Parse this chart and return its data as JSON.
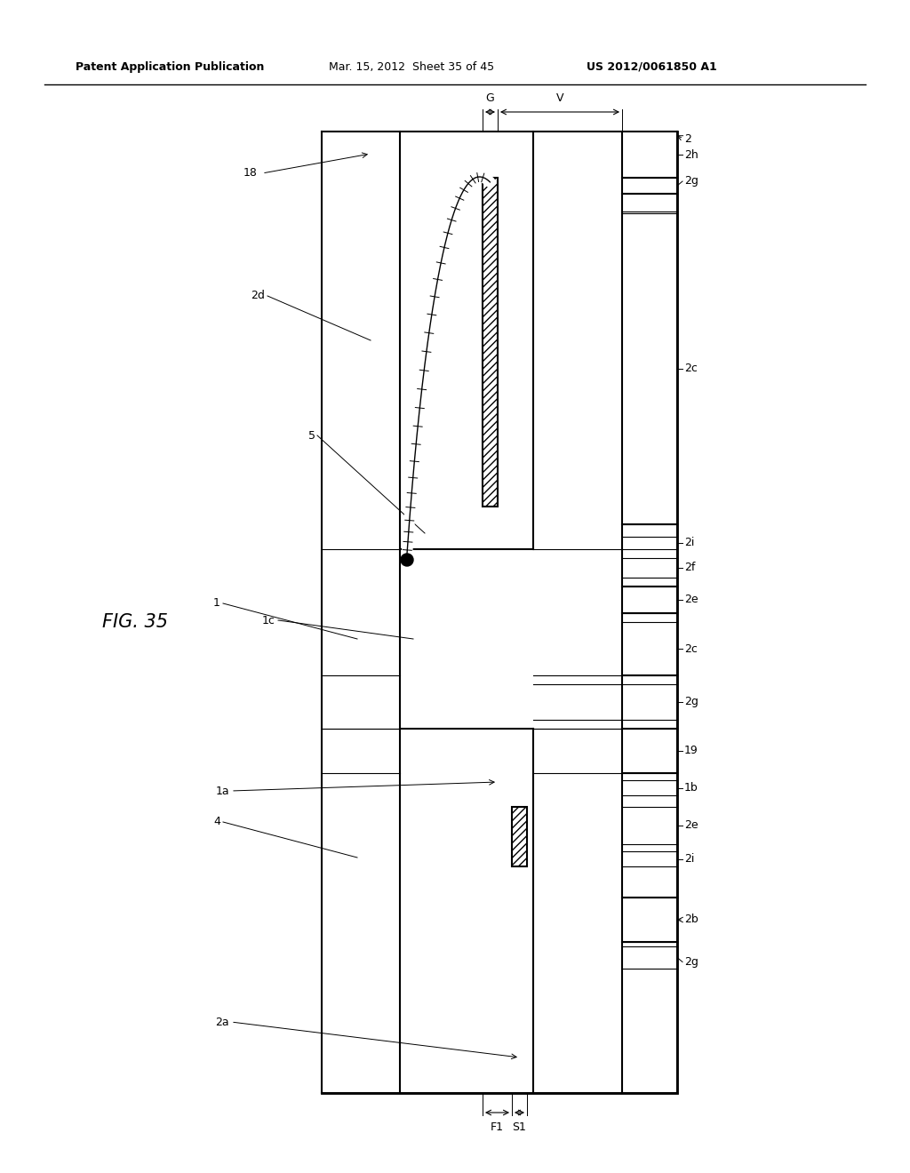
{
  "background": "#ffffff",
  "header_left": "Patent Application Publication",
  "header_mid": "Mar. 15, 2012  Sheet 35 of 45",
  "header_right": "US 2012/0061850 A1",
  "fig_label": "FIG. 35"
}
